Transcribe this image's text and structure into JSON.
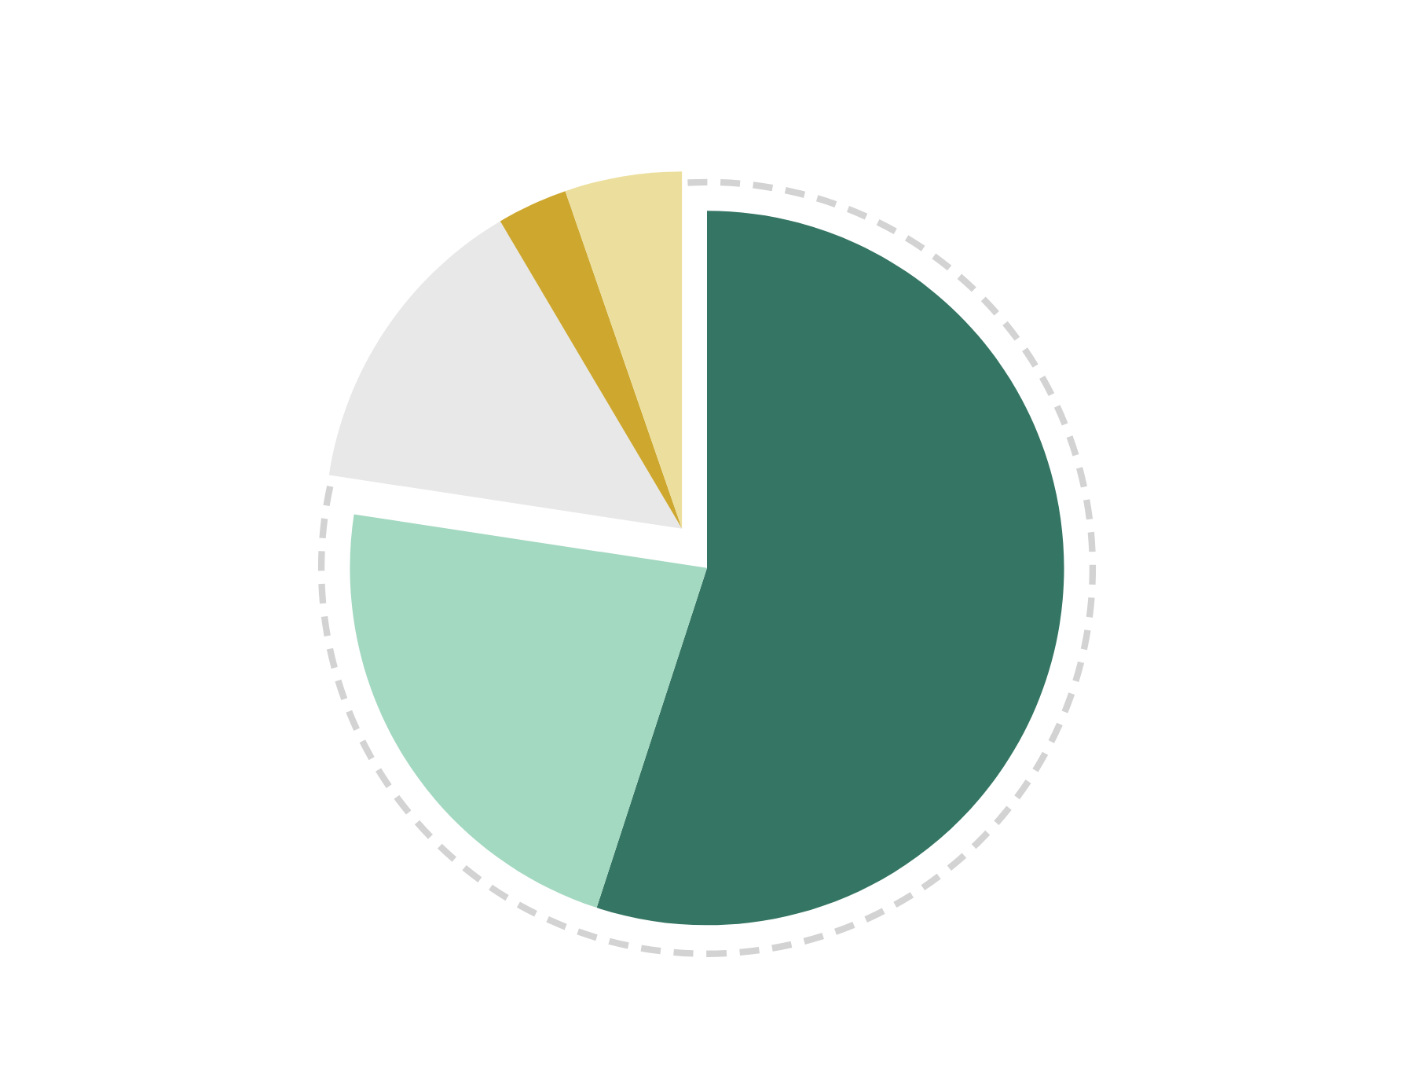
{
  "chart_data": {
    "type": "pie",
    "categories": [
      null,
      null,
      null,
      null,
      null
    ],
    "values": [
      55.0,
      22.4,
      14.1,
      3.2,
      5.3
    ],
    "colors": [
      "#357563",
      "#a3d8c1",
      "#e8e8e8",
      "#cda72e",
      "#ecdf9e"
    ]
  }
}
